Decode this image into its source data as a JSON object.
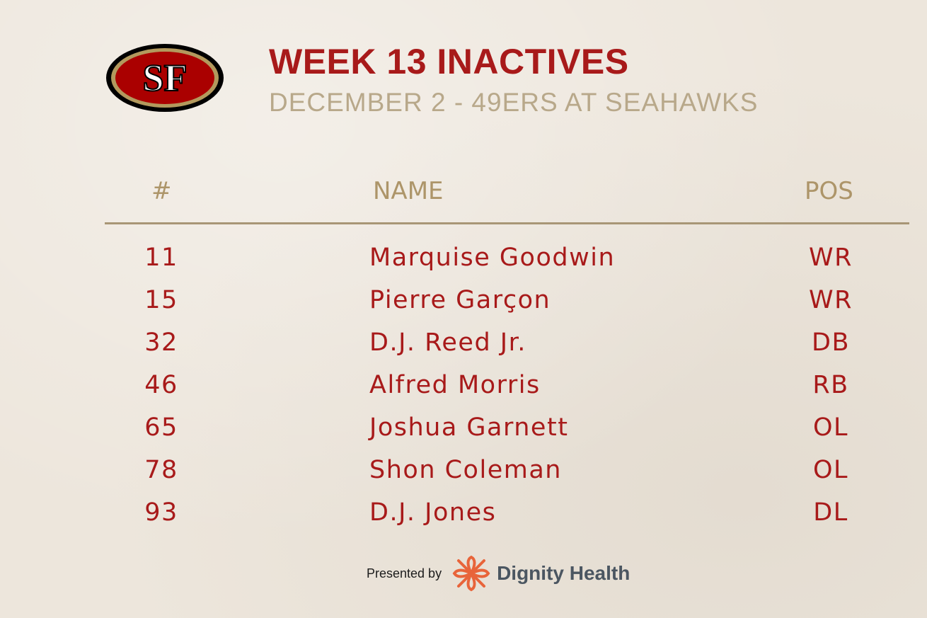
{
  "logo": {
    "text": "SF",
    "icon": "49ers-sf-oval-logo"
  },
  "header": {
    "title": "WEEK 13 INACTIVES",
    "subtitle": "DECEMBER 2 - 49ERS AT SEAHAWKS"
  },
  "table": {
    "columns": [
      "#",
      "NAME",
      "POS"
    ],
    "rows": [
      {
        "number": "11",
        "name": "Marquise Goodwin",
        "pos": "WR"
      },
      {
        "number": "15",
        "name": "Pierre Garçon",
        "pos": "WR"
      },
      {
        "number": "32",
        "name": "D.J. Reed Jr.",
        "pos": "DB"
      },
      {
        "number": "46",
        "name": "Alfred Morris",
        "pos": "RB"
      },
      {
        "number": "65",
        "name": "Joshua Garnett",
        "pos": "OL"
      },
      {
        "number": "78",
        "name": "Shon Coleman",
        "pos": "OL"
      },
      {
        "number": "93",
        "name": "D.J. Jones",
        "pos": "DL"
      }
    ]
  },
  "sponsor": {
    "presented_label": "Presented by",
    "name": "Dignity Health",
    "icon": "dignity-health-flower-icon"
  },
  "colors": {
    "background": "#ede6dc",
    "title_red": "#a81a1a",
    "gold": "#ad9569",
    "subtitle": "#b8a88a",
    "sponsor_orange": "#e8643a"
  }
}
